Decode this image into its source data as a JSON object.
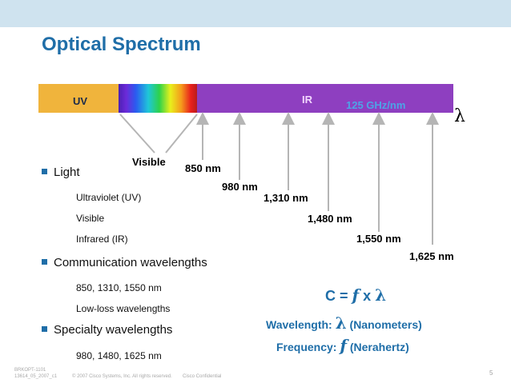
{
  "slide": {
    "title": "Optical Spectrum"
  },
  "spectrum": {
    "uv_label": "UV",
    "ir_label": "IR",
    "ghz_label": "125 GHz/nm",
    "lambda_symbol": "λ",
    "visible_label": "Visible",
    "wavelength_marks": [
      {
        "label": "850 nm",
        "value_nm": 850
      },
      {
        "label": "980 nm",
        "value_nm": 980
      },
      {
        "label": "1,310 nm",
        "value_nm": 1310
      },
      {
        "label": "1,480 nm",
        "value_nm": 1480
      },
      {
        "label": "1,550 nm",
        "value_nm": 1550
      },
      {
        "label": "1,625 nm",
        "value_nm": 1625
      }
    ]
  },
  "bullets": [
    {
      "label": "Light",
      "subitems": [
        "Ultraviolet (UV)",
        "Visible",
        "Infrared (IR)"
      ]
    },
    {
      "label": "Communication wavelengths",
      "subitems": [
        "850, 1310, 1550 nm",
        "Low-loss wavelengths"
      ]
    },
    {
      "label": "Specialty wavelengths",
      "subitems": [
        "980, 1480, 1625 nm"
      ]
    }
  ],
  "formula": {
    "c_prefix": "C = ",
    "f_symbol": "f",
    "x_text": " x ",
    "lambda_symbol": "λ",
    "wavelength_label": "Wavelength: ",
    "wavelength_unit": " (Nanometers)",
    "frequency_label": "Frequency: ",
    "frequency_unit": " (Nerahertz)"
  },
  "footer": {
    "line1": "BRKOPT-1101",
    "line2": "13614_05_2007_c1",
    "copyright": "© 2007 Cisco Systems, Inc. All rights reserved.",
    "confidential": "Cisco Confidential",
    "page_number": "5"
  },
  "colors": {
    "title": "#1f6ea8",
    "uv_band": "#f0b43c",
    "ir_band": "#8e3fc0",
    "arrow": "#b5b5b5",
    "ghz_text": "#4da4e6"
  }
}
